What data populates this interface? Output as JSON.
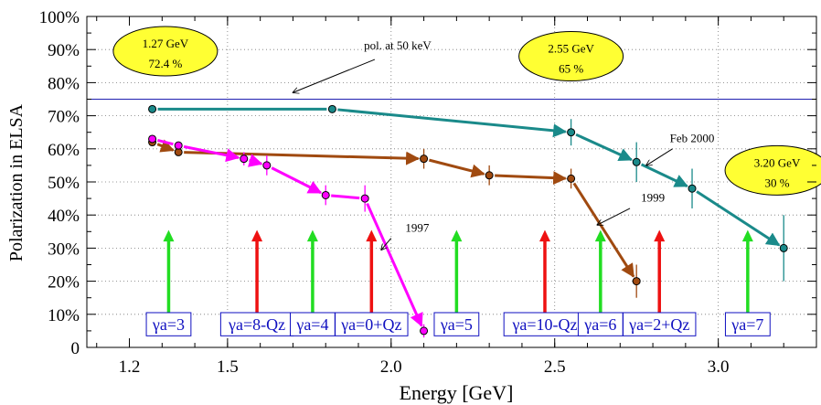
{
  "colors": {
    "feb2000": "#1a8a8a",
    "y1999": "#a04a10",
    "y1997": "#ff00ff",
    "pol_line": "#2020b0",
    "arrow_green": "#22dd22",
    "arrow_red": "#ee1111",
    "resonance_box": "#1010c0",
    "ellipse_fill": "#ffff33"
  },
  "chart_data": {
    "type": "line",
    "xlabel": "Energy [GeV]",
    "ylabel": "Polarization in ELSA",
    "xlim": [
      1.07,
      3.3
    ],
    "ylim": [
      0,
      100
    ],
    "x_ticks": [
      {
        "value": 1.2,
        "label": "1.2"
      },
      {
        "value": 1.5,
        "label": "1.5"
      },
      {
        "value": 2.0,
        "label": "2.0"
      },
      {
        "value": 2.5,
        "label": "2.5"
      },
      {
        "value": 3.0,
        "label": "3.0"
      }
    ],
    "y_ticks": [
      {
        "value": 0,
        "label": "0"
      },
      {
        "value": 10,
        "label": "10%"
      },
      {
        "value": 20,
        "label": "20%"
      },
      {
        "value": 30,
        "label": "30%"
      },
      {
        "value": 40,
        "label": "40%"
      },
      {
        "value": 50,
        "label": "50%"
      },
      {
        "value": 60,
        "label": "60%"
      },
      {
        "value": 70,
        "label": "70%"
      },
      {
        "value": 80,
        "label": "80%"
      },
      {
        "value": 90,
        "label": "90%"
      },
      {
        "value": 100,
        "label": "100%"
      }
    ],
    "grid": true,
    "reference_line": {
      "value": 75,
      "label": "pol. at 50 keV"
    },
    "series": [
      {
        "name": "Feb 2000",
        "color_key": "feb2000",
        "points": [
          {
            "x": 1.27,
            "y": 72,
            "err": 0
          },
          {
            "x": 1.82,
            "y": 72,
            "err": 0
          },
          {
            "x": 2.55,
            "y": 65,
            "err": 4
          },
          {
            "x": 2.75,
            "y": 56,
            "err": 6
          },
          {
            "x": 2.92,
            "y": 48,
            "err": 6
          },
          {
            "x": 3.2,
            "y": 30,
            "err": 10
          }
        ],
        "flat_segments": [
          [
            0,
            1
          ]
        ]
      },
      {
        "name": "1999",
        "color_key": "y1999",
        "points": [
          {
            "x": 1.27,
            "y": 62,
            "err": 0
          },
          {
            "x": 1.35,
            "y": 59,
            "err": 1
          },
          {
            "x": 2.1,
            "y": 57,
            "err": 3
          },
          {
            "x": 2.3,
            "y": 52,
            "err": 3
          },
          {
            "x": 2.55,
            "y": 51,
            "err": 3
          },
          {
            "x": 2.75,
            "y": 20,
            "err": 5
          }
        ],
        "flat_segments": []
      },
      {
        "name": "1997",
        "color_key": "y1997",
        "points": [
          {
            "x": 1.27,
            "y": 63,
            "err": 0
          },
          {
            "x": 1.35,
            "y": 61,
            "err": 1
          },
          {
            "x": 1.55,
            "y": 57,
            "err": 2
          },
          {
            "x": 1.62,
            "y": 55,
            "err": 3
          },
          {
            "x": 1.8,
            "y": 46,
            "err": 3
          },
          {
            "x": 1.92,
            "y": 45,
            "err": 4
          },
          {
            "x": 2.1,
            "y": 5,
            "err": 2
          }
        ],
        "flat_segments": [
          [
            0,
            1
          ],
          [
            4,
            5
          ]
        ]
      }
    ],
    "resonances": [
      {
        "label": "γa=3",
        "x": 1.32,
        "color": "green"
      },
      {
        "label": "γa=8-Qz",
        "x": 1.59,
        "color": "red"
      },
      {
        "label": "γa=4",
        "x": 1.76,
        "color": "green"
      },
      {
        "label": "γa=0+Qz",
        "x": 1.94,
        "color": "red"
      },
      {
        "label": "γa=5",
        "x": 2.2,
        "color": "green"
      },
      {
        "label": "γa=10-Qz",
        "x": 2.47,
        "color": "red"
      },
      {
        "label": "γa=6",
        "x": 2.64,
        "color": "green"
      },
      {
        "label": "γa=2+Qz",
        "x": 2.82,
        "color": "red"
      },
      {
        "label": "γa=7",
        "x": 3.09,
        "color": "green"
      }
    ],
    "annotations": [
      {
        "text": "pol. at 50 keV"
      },
      {
        "text": "Feb 2000"
      },
      {
        "text": "1999"
      },
      {
        "text": "1997"
      }
    ],
    "callouts": [
      {
        "line1": "1.27 GeV",
        "line2": "72.4 %"
      },
      {
        "line1": "2.55 GeV",
        "line2": "65 %"
      },
      {
        "line1": "3.20 GeV",
        "line2": "30 %"
      }
    ]
  }
}
